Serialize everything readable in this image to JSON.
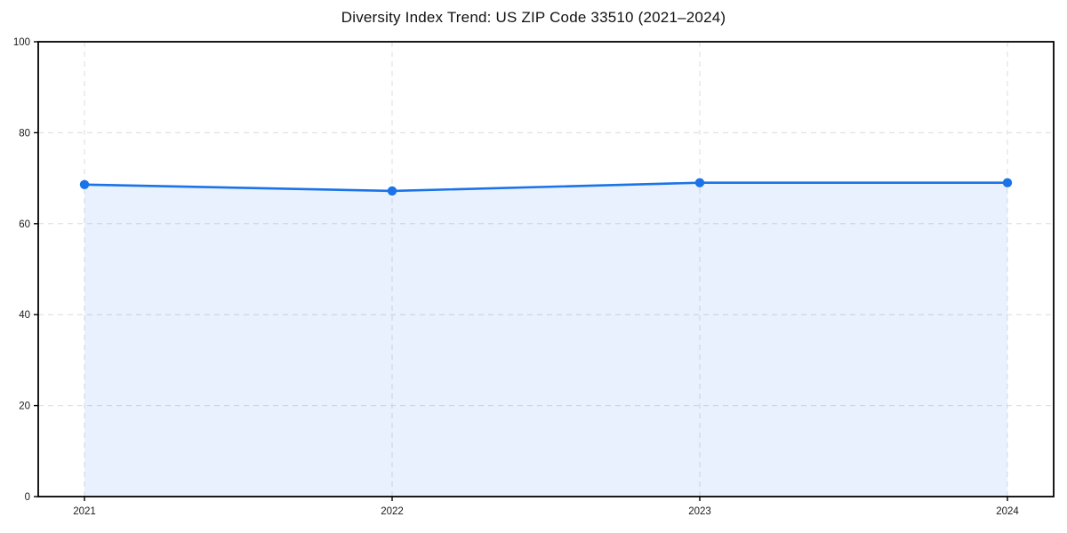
{
  "chart_data": {
    "type": "area",
    "title": "Diversity Index Trend: US ZIP Code 33510 (2021–2024)",
    "x": [
      "2021",
      "2022",
      "2023",
      "2024"
    ],
    "values": [
      68.6,
      67.2,
      69.0,
      69.0
    ],
    "xlabel": "",
    "ylabel": "",
    "ylim": [
      0,
      100
    ],
    "yticks": [
      0,
      20,
      40,
      60,
      80,
      100
    ],
    "grid": "dashed-both-axes",
    "legend": "none",
    "line_color": "#1a73e8",
    "marker_color": "#1a73e8",
    "fill_color": "#1a73e8",
    "fill_opacity": 0.1,
    "grid_color": "#dcdcdc",
    "frame_color": "#000000",
    "background_color": "#ffffff"
  }
}
